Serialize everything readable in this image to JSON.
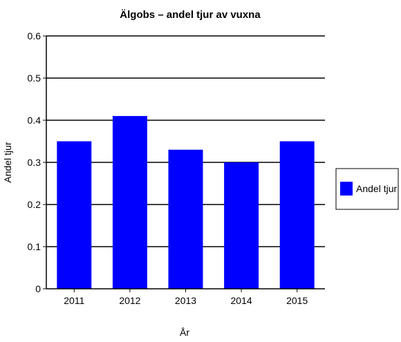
{
  "chart_data": {
    "type": "bar",
    "title": "Älgobs – andel tjur av vuxna",
    "xlabel": "År",
    "ylabel": "Andel tjur",
    "categories": [
      "2011",
      "2012",
      "2013",
      "2014",
      "2015"
    ],
    "series": [
      {
        "name": "Andel tjur",
        "values": [
          0.35,
          0.41,
          0.33,
          0.3,
          0.35
        ],
        "color": "#0000ff"
      }
    ],
    "ylim": [
      0,
      0.6
    ],
    "yticks": [
      "0",
      "0.1",
      "0.2",
      "0.3",
      "0.4",
      "0.5",
      "0.6"
    ],
    "grid": "horizontal",
    "legend": "right"
  }
}
